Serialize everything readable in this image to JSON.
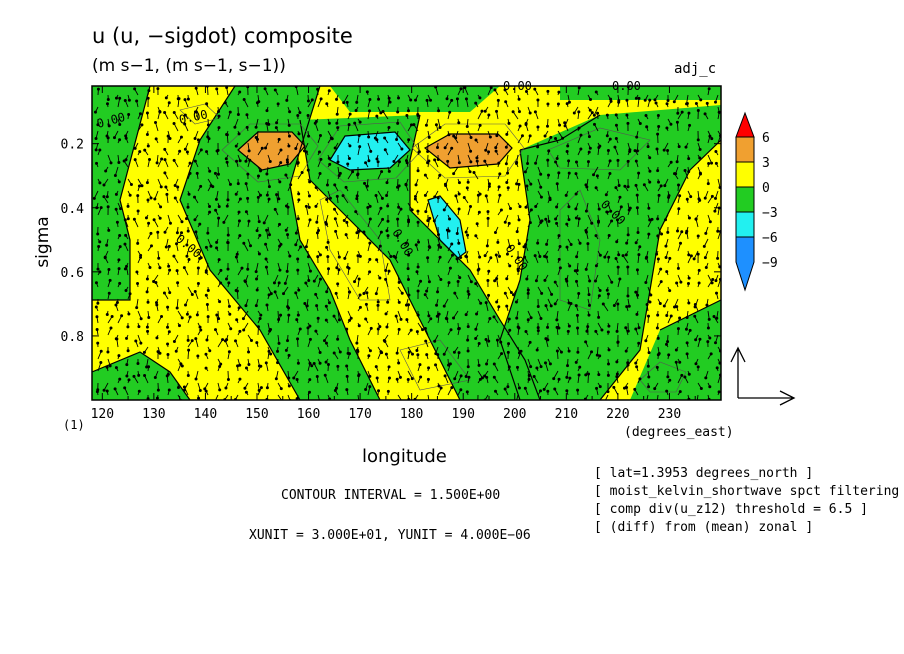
{
  "title": "u (u, −sigdot) composite",
  "units_line": "(m s−1, (m s−1, s−1))",
  "run_label": "adj_c",
  "contour_interval": "CONTOUR INTERVAL = 1.500E+00",
  "vector_units": "XUNIT = 3.000E+01, YUNIT = 4.000E−06",
  "notes": [
    "[ lat=1.3953 degrees_north ]",
    "[ moist_kelvin_shortwave spct filtering ]",
    "[ comp div(u_z12) threshold = 6.5 ]",
    "[ (diff) from (mean) zonal ]"
  ],
  "colors": {
    "red": "#ff0000",
    "orange": "#f0a030",
    "yellow": "#ffff00",
    "green": "#22cc22",
    "cyan": "#22f0f0",
    "blue": "#1e90ff"
  },
  "chart_data": {
    "type": "heatmap",
    "xlabel": "longitude",
    "xunit": "(degrees_east)",
    "ylabel": "sigma",
    "xlim": [
      118,
      240
    ],
    "ylim": [
      0.02,
      1.0
    ],
    "y_inverted": true,
    "x_ticks": [
      120,
      130,
      140,
      150,
      160,
      170,
      180,
      190,
      200,
      210,
      220,
      230
    ],
    "y_ticks": [
      0.2,
      0.4,
      0.6,
      0.8
    ],
    "y_ticks_text": [
      "0.2",
      "0.4",
      "0.6",
      "0.8"
    ],
    "extra_label": "(1)",
    "colorbar": {
      "labels": [
        "6",
        "3",
        "0",
        "−3",
        "−6",
        "−9"
      ],
      "levels": [
        6,
        3,
        0,
        -3,
        -6,
        -9
      ]
    },
    "contour_labels": [
      "0.00",
      "0.00",
      "0.00",
      "0.00",
      "0.00",
      "0.00",
      "0.00",
      "0.00"
    ],
    "anomaly_bands": [
      {
        "sign": "negative",
        "lon_at_top": 118,
        "lon_at_bottom": 118,
        "note": "green region west edge"
      },
      {
        "sign": "positive",
        "lon_top": 158,
        "lon_bottom": 140
      },
      {
        "sign": "negative",
        "lon_top": 173,
        "lon_bottom": 160
      },
      {
        "sign": "positive",
        "lon_top": 186,
        "lon_bottom": 178
      },
      {
        "sign": "negative",
        "lon_top": 199,
        "lon_bottom": 196
      },
      {
        "sign": "positive",
        "lon_top": 214,
        "lon_bottom": 220
      },
      {
        "sign": "negative",
        "lon_top": 232,
        "lon_bottom": 228
      }
    ],
    "extrema": [
      {
        "lon": 152,
        "sigma": 0.22,
        "level": "3 to 6"
      },
      {
        "lon": 191,
        "sigma": 0.22,
        "level": "3 to 6"
      },
      {
        "lon": 172,
        "sigma": 0.22,
        "level": "-6 to -3"
      },
      {
        "lon": 183,
        "sigma": 0.47,
        "level": "-6 to -3"
      }
    ]
  }
}
